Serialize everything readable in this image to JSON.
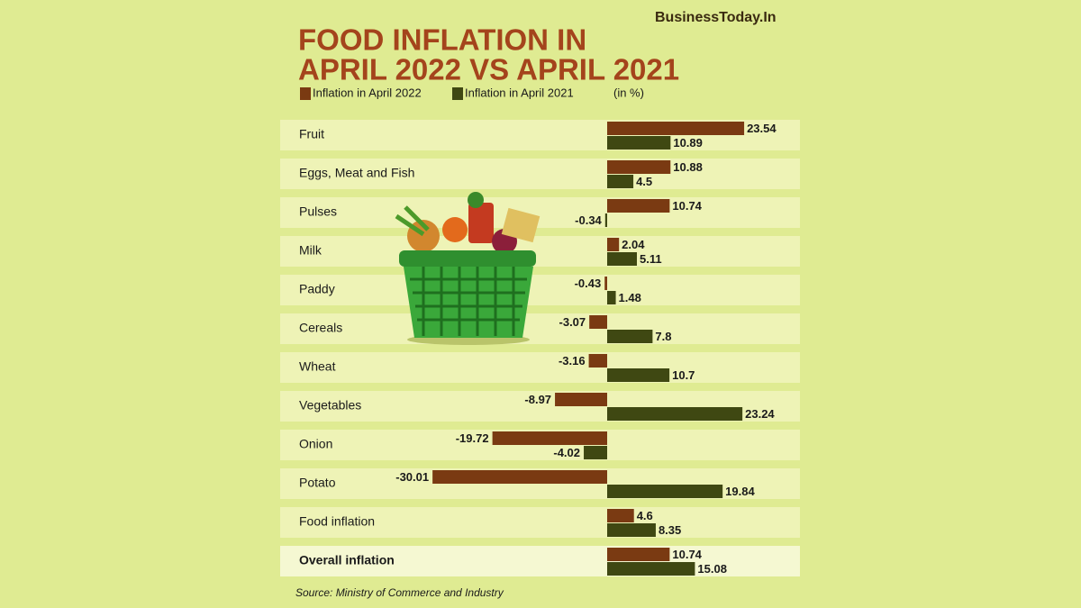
{
  "brand": "BusinessToday.In",
  "chart_data": {
    "type": "bar",
    "orientation": "horizontal",
    "title": [
      "FOOD INFLATION IN",
      "APRIL 2022 VS APRIL 2021"
    ],
    "unit_note": "(in %)",
    "source": "Source: Ministry of Commerce and Industry",
    "categories": [
      "Fruit",
      "Eggs, Meat and Fish",
      "Pulses",
      "Milk",
      "Paddy",
      "Cereals",
      "Wheat",
      "Vegetables",
      "Onion",
      "Potato",
      "Food inflation",
      "Overall inflation"
    ],
    "series": [
      {
        "name": "Inflation in April 2022",
        "color": "#7a3a12",
        "values": [
          23.54,
          10.88,
          10.74,
          2.04,
          -0.43,
          -3.07,
          -3.16,
          -8.97,
          -19.72,
          -30.01,
          4.6,
          10.74
        ]
      },
      {
        "name": "Inflation in April 2021",
        "color": "#3f4812",
        "values": [
          10.89,
          4.5,
          -0.34,
          5.11,
          1.48,
          7.8,
          10.7,
          23.24,
          -4.02,
          19.84,
          8.35,
          15.08
        ]
      }
    ]
  }
}
